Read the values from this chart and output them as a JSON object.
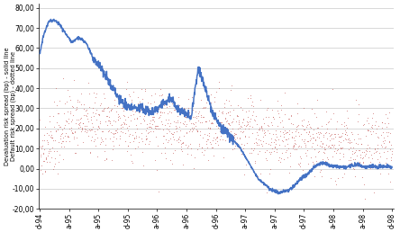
{
  "ylabel_left": "Devaluation risk spread (bp) - solid line\nDefault risk spread (bp) - dotted line",
  "ylim": [
    -20,
    82
  ],
  "yticks": [
    -20,
    -10,
    0,
    10,
    20,
    30,
    40,
    50,
    60,
    70,
    80
  ],
  "ytick_labels": [
    "-20,00",
    "-10,00",
    "0,00",
    "10,00",
    "20,00",
    "30,00",
    "40,00",
    "50,00",
    "60,00",
    "70,00",
    "80,00"
  ],
  "xtick_labels": [
    "d-94",
    "a-95",
    "a-95",
    "d-95",
    "a-96",
    "a-96",
    "d-96",
    "a-97",
    "a-97",
    "d-97",
    "a-98",
    "a-98",
    "d-98"
  ],
  "blue_color": "#4472C4",
  "red_color": "#C0504D",
  "background_color": "#FFFFFF",
  "grid_color": "#BBBBBB",
  "n_total": 1250,
  "blue_knots_x": [
    0.0,
    0.01,
    0.025,
    0.04,
    0.055,
    0.07,
    0.09,
    0.11,
    0.13,
    0.155,
    0.18,
    0.2,
    0.22,
    0.24,
    0.26,
    0.28,
    0.3,
    0.32,
    0.34,
    0.355,
    0.37,
    0.385,
    0.395,
    0.405,
    0.415,
    0.43,
    0.45,
    0.47,
    0.49,
    0.51,
    0.53,
    0.55,
    0.56,
    0.57,
    0.58,
    0.59,
    0.6,
    0.61,
    0.62,
    0.64,
    0.66,
    0.68,
    0.7,
    0.72,
    0.74,
    0.76,
    0.78,
    0.8,
    0.82,
    0.84,
    0.86,
    0.88,
    0.9,
    0.92,
    0.94,
    0.96,
    0.98,
    1.0
  ],
  "blue_knots_y": [
    57,
    66,
    73,
    74,
    72,
    68,
    63,
    65,
    63,
    54,
    48,
    42,
    36,
    32,
    30,
    30,
    29,
    28,
    31,
    33,
    35,
    32,
    30,
    28,
    27,
    26,
    50,
    40,
    28,
    22,
    18,
    14,
    12,
    10,
    7,
    4,
    1,
    -2,
    -5,
    -8,
    -11,
    -12,
    -11,
    -9,
    -5,
    -3,
    1,
    3,
    2,
    1,
    1,
    1,
    2,
    1,
    1,
    1,
    1,
    1
  ],
  "red_knots_x": [
    0.0,
    0.04,
    0.08,
    0.12,
    0.16,
    0.2,
    0.24,
    0.28,
    0.32,
    0.36,
    0.4,
    0.44,
    0.48,
    0.52,
    0.56,
    0.6,
    0.64,
    0.68,
    0.72,
    0.76,
    0.8,
    0.84,
    0.88,
    0.92,
    0.96,
    1.0
  ],
  "red_knots_y": [
    7,
    12,
    22,
    26,
    22,
    20,
    22,
    22,
    22,
    21,
    20,
    20,
    20,
    22,
    20,
    18,
    16,
    16,
    15,
    14,
    13,
    12,
    10,
    10,
    10,
    10
  ],
  "red_noise_std": 8.5,
  "blue_noise_std": 1.2
}
